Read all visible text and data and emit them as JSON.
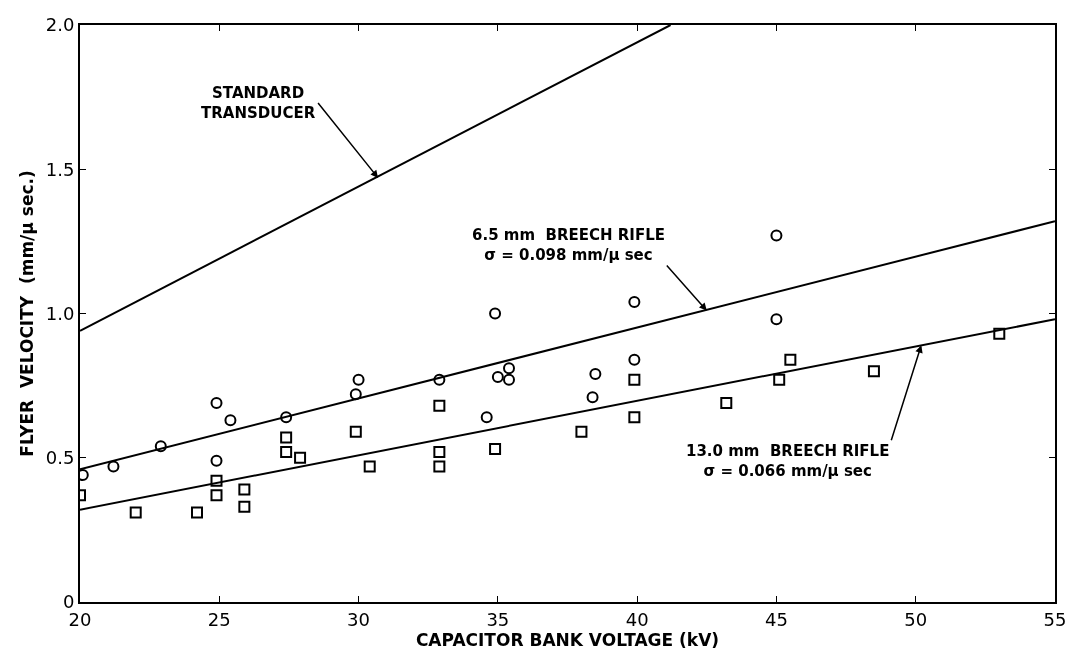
{
  "chart_data": {
    "type": "scatter",
    "xlabel": "CAPACITOR BANK VOLTAGE (kV)",
    "ylabel": "FLYER  VELOCITY  (mm/μ sec.)",
    "xlim": [
      20,
      55
    ],
    "xticks": [
      20,
      25,
      30,
      35,
      40,
      45,
      50,
      55
    ],
    "ylim": [
      0,
      2.0
    ],
    "yticks": [
      0,
      0.5,
      {
        "value": 1.0,
        "label": "1.0"
      },
      1.5,
      {
        "value": 2.0,
        "label": "2.0"
      }
    ],
    "series": [
      {
        "type": "line",
        "color": "#000000",
        "x": [
          20,
          41.2
        ],
        "values": [
          0.94,
          2.0
        ],
        "marker": "none",
        "line_style": "solid"
      },
      {
        "type": "line",
        "color": "#000000",
        "x": [
          20,
          55
        ],
        "values": [
          0.46,
          1.32
        ],
        "marker": "none",
        "line_style": "solid"
      },
      {
        "type": "line",
        "color": "#000000",
        "x": [
          20,
          55
        ],
        "values": [
          0.32,
          0.98
        ],
        "marker": "none",
        "line_style": "solid"
      },
      {
        "color": "#000000",
        "marker": "circle",
        "x": [
          20.1,
          21.2,
          22.9,
          24.9,
          25.4,
          24.9,
          27.4,
          30.0,
          29.9,
          34.9,
          39.9,
          32.9,
          35.0,
          35.4,
          35.4,
          34.6,
          38.5,
          38.4,
          39.9,
          45.0,
          45.0
        ],
        "values": [
          0.44,
          0.47,
          0.54,
          0.69,
          0.63,
          0.49,
          0.64,
          0.77,
          0.72,
          1.0,
          1.04,
          0.77,
          0.78,
          0.81,
          0.77,
          0.64,
          0.79,
          0.71,
          0.84,
          0.98,
          1.27
        ]
      },
      {
        "color": "#000000",
        "marker": "square",
        "x": [
          20.0,
          22.0,
          24.2,
          24.9,
          24.9,
          25.9,
          25.9,
          27.4,
          27.4,
          27.9,
          29.9,
          30.4,
          32.9,
          32.9,
          32.9,
          34.9,
          38.0,
          39.9,
          39.9,
          43.2,
          45.5,
          45.1,
          48.5,
          53.0
        ],
        "values": [
          0.37,
          0.31,
          0.31,
          0.42,
          0.37,
          0.39,
          0.33,
          0.57,
          0.52,
          0.5,
          0.59,
          0.47,
          0.68,
          0.52,
          0.47,
          0.53,
          0.59,
          0.77,
          0.64,
          0.69,
          0.84,
          0.77,
          0.8,
          0.93
        ]
      }
    ],
    "annotations": [
      {
        "text": "STANDARD\nTRANSDUCER",
        "x": 30.7,
        "y": 1.47
      },
      {
        "text": "6.5 mm  BREECH RIFLE\nσ = 0.098 mm/μ sec",
        "x": 42.5,
        "y": 1.01
      },
      {
        "text": "13.0 mm  BREECH RIFLE\nσ = 0.066 mm/μ sec",
        "x": 50.2,
        "y": 0.89
      }
    ]
  }
}
